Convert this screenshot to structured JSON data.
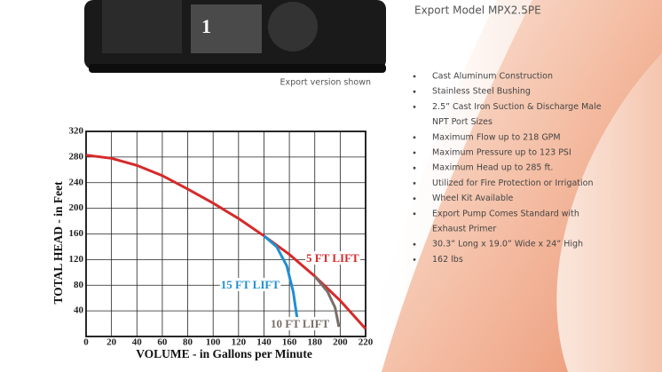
{
  "header": {
    "model": "Export Model MPX2.5PE"
  },
  "image": {
    "caption": "Export version shown"
  },
  "features": [
    [
      "Cast Aluminum Construction"
    ],
    [
      "Stainless Steel Bushing"
    ],
    [
      "2.5” Cast Iron Suction & Discharge Male",
      "NPT Port Sizes"
    ],
    [
      "Maximum Flow up to 218 GPM"
    ],
    [
      "Maximum Pressure up to 123 PSI"
    ],
    [
      "Maximum Head up to 285 ft."
    ],
    [
      "Utilized for Fire Protection or Irrigation"
    ],
    [
      "Wheel Kit Available"
    ],
    [
      "Export Pump Comes Standard with",
      "Exhaust Primer"
    ],
    [
      "30.3” Long x 19.0” Wide x 24” High"
    ],
    [
      "162 lbs"
    ]
  ],
  "chart_data": {
    "type": "line",
    "x_label": "VOLUME - in Gallons per Minute",
    "y_label": "TOTAL HEAD - in Feet",
    "xlim": [
      0,
      220
    ],
    "ylim": [
      0,
      320
    ],
    "xticks": [
      0,
      20,
      40,
      60,
      80,
      100,
      120,
      140,
      160,
      180,
      200,
      220
    ],
    "yticks": [
      40,
      80,
      120,
      160,
      200,
      240,
      280,
      320
    ],
    "grid": true,
    "series": [
      {
        "name": "5 FT LIFT",
        "color": "#d62a2a",
        "x": [
          0,
          20,
          40,
          60,
          80,
          100,
          120,
          140,
          160,
          180,
          200,
          220
        ],
        "values": [
          283,
          278,
          267,
          251,
          230,
          208,
          184,
          157,
          128,
          94,
          56,
          12
        ]
      },
      {
        "name": "15 FT LIFT",
        "color": "#1f8fd2",
        "x": [
          140,
          150,
          158,
          163,
          166
        ],
        "values": [
          157,
          140,
          110,
          70,
          30
        ]
      },
      {
        "name": "10 FT LIFT",
        "color": "#7a6e68",
        "x": [
          180,
          190,
          196,
          199
        ],
        "values": [
          94,
          70,
          45,
          15
        ]
      }
    ]
  }
}
